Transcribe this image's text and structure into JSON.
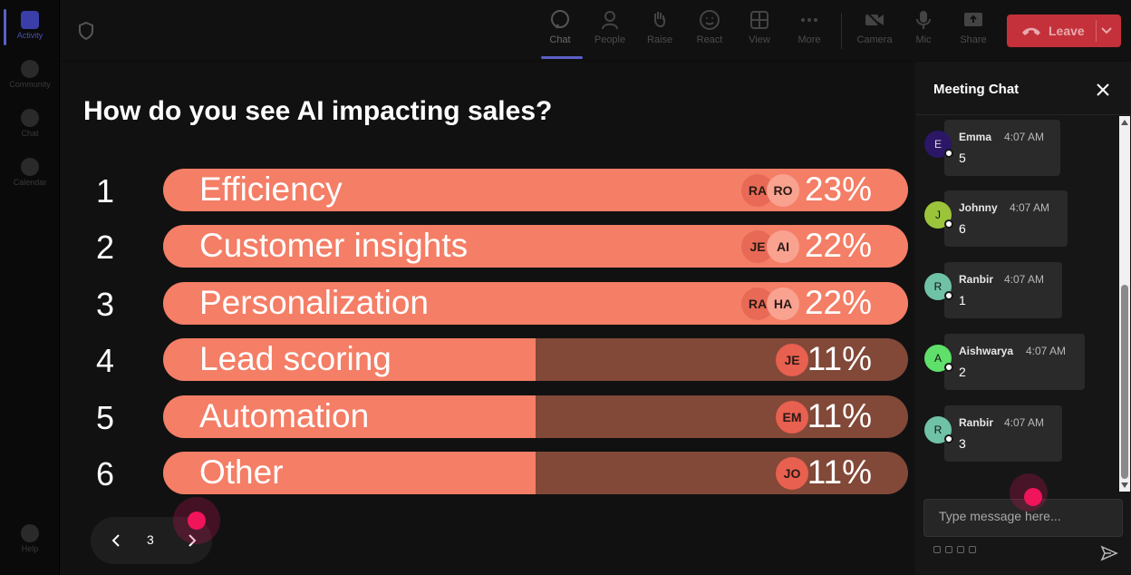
{
  "rail": {
    "items": [
      {
        "label": "Activity"
      },
      {
        "label": "Community"
      },
      {
        "label": "Chat"
      },
      {
        "label": "Calendar"
      },
      {
        "label": "Help"
      }
    ]
  },
  "toolbar": {
    "buttons": [
      {
        "label": "Chat",
        "icon": "chat-icon"
      },
      {
        "label": "People",
        "icon": "people-icon"
      },
      {
        "label": "Raise",
        "icon": "raise-hand-icon"
      },
      {
        "label": "React",
        "icon": "react-icon"
      },
      {
        "label": "View",
        "icon": "view-icon"
      },
      {
        "label": "More",
        "icon": "more-icon"
      },
      {
        "label": "Camera",
        "icon": "camera-icon"
      },
      {
        "label": "Mic",
        "icon": "mic-icon"
      },
      {
        "label": "Share",
        "icon": "share-icon"
      }
    ],
    "leave_label": "Leave",
    "leave_color": "#c4313b"
  },
  "poll": {
    "question": "How do you see AI impacting sales?",
    "options": [
      {
        "num": "1",
        "label": "Efficiency",
        "pct": "23%",
        "fill": 1.0,
        "avatars": [
          "RA",
          "RO"
        ]
      },
      {
        "num": "2",
        "label": "Customer insights",
        "pct": "22%",
        "fill": 1.0,
        "avatars": [
          "JE",
          "AI"
        ]
      },
      {
        "num": "3",
        "label": "Personalization",
        "pct": "22%",
        "fill": 1.0,
        "avatars": [
          "RA",
          "HA"
        ]
      },
      {
        "num": "4",
        "label": "Lead scoring",
        "pct": "11%",
        "fill": 0.5,
        "avatars": [
          "JE"
        ]
      },
      {
        "num": "5",
        "label": "Automation",
        "pct": "11%",
        "fill": 0.5,
        "avatars": [
          "EM"
        ]
      },
      {
        "num": "6",
        "label": "Other",
        "pct": "11%",
        "fill": 0.5,
        "avatars": [
          "JO"
        ]
      }
    ],
    "bar_color": "#f47e66",
    "track_color": "#824838"
  },
  "pager": {
    "page": "3"
  },
  "chat": {
    "title": "Meeting Chat",
    "messages": [
      {
        "initial": "E",
        "name": "Emma",
        "time": "4:07 AM",
        "text": "5",
        "color": "#2b1766"
      },
      {
        "initial": "J",
        "name": "Johnny",
        "time": "4:07 AM",
        "text": "6",
        "color": "#9bc43b"
      },
      {
        "initial": "R",
        "name": "Ranbir",
        "time": "4:07 AM",
        "text": "1",
        "color": "#6fc2a6"
      },
      {
        "initial": "A",
        "name": "Aishwarya",
        "time": "4:07 AM",
        "text": "2",
        "color": "#5fe06a"
      },
      {
        "initial": "R",
        "name": "Ranbir",
        "time": "4:07 AM",
        "text": "3",
        "color": "#6fc2a6"
      }
    ],
    "input_placeholder": "Type message here..."
  }
}
